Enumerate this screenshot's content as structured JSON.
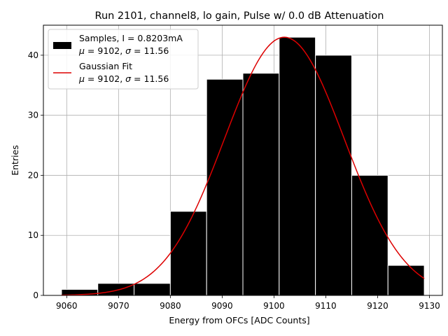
{
  "chart_data": {
    "type": "bar",
    "title": "Run 2101, channel8, lo gain, Pulse w/ 0.0 dB Attenuation",
    "xlabel": "Energy from OFCs [ADC Counts]",
    "ylabel": "Entries",
    "xlim": [
      9055.5,
      9132.5
    ],
    "ylim": [
      0,
      45
    ],
    "xticks": [
      9060,
      9070,
      9080,
      9090,
      9100,
      9110,
      9120,
      9130
    ],
    "yticks": [
      0,
      10,
      20,
      30,
      40
    ],
    "grid": true,
    "legend_position": "top-left",
    "bin_edges": [
      9059.0,
      9066.0,
      9073.0,
      9080.0,
      9087.0,
      9094.0,
      9101.0,
      9108.0,
      9115.0,
      9122.0,
      9129.0
    ],
    "values": [
      1,
      2,
      2,
      14,
      36,
      37,
      43,
      40,
      20,
      5
    ],
    "series": [
      {
        "name_line1": "Samples, I = 0.8203mA",
        "mu_text": "9102",
        "sigma_text": "11.56",
        "color": "#000000",
        "kind": "histogram"
      },
      {
        "name_line1": "Gaussian Fit",
        "mu_text": "9102",
        "sigma_text": "11.56",
        "color": "#dd0000",
        "kind": "line"
      }
    ],
    "fit": {
      "amplitude": 43,
      "mu": 9102,
      "sigma": 11.56,
      "x_range": [
        9059.0,
        9129.0
      ]
    }
  }
}
